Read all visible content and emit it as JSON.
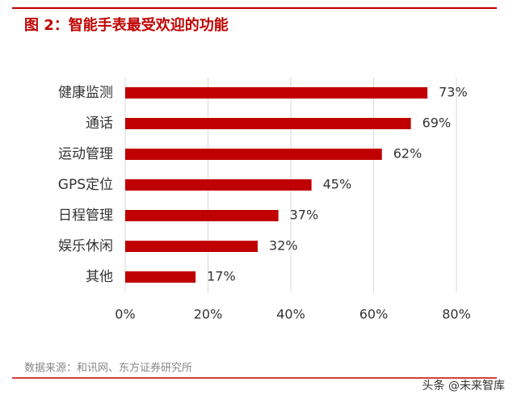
{
  "chart_data": {
    "type": "bar",
    "orientation": "horizontal",
    "title": "图 2：智能手表最受欢迎的功能",
    "source": "数据来源：和讯网、东方证券研究所",
    "watermark": "头条 @未来智库",
    "categories": [
      "健康监测",
      "通话",
      "运动管理",
      "GPS定位",
      "日程管理",
      "娱乐休闲",
      "其他"
    ],
    "values": [
      73,
      69,
      62,
      45,
      37,
      32,
      17
    ],
    "value_labels": [
      "73%",
      "69%",
      "62%",
      "45%",
      "37%",
      "32%",
      "17%"
    ],
    "color": "#c00000",
    "xlim": [
      0,
      80
    ],
    "xticks": [
      {
        "value": 0,
        "label": "0%"
      },
      {
        "value": 20,
        "label": "20%"
      },
      {
        "value": 40,
        "label": "40%"
      },
      {
        "value": 60,
        "label": "60%"
      },
      {
        "value": 80,
        "label": "80%"
      }
    ],
    "grid": true
  }
}
